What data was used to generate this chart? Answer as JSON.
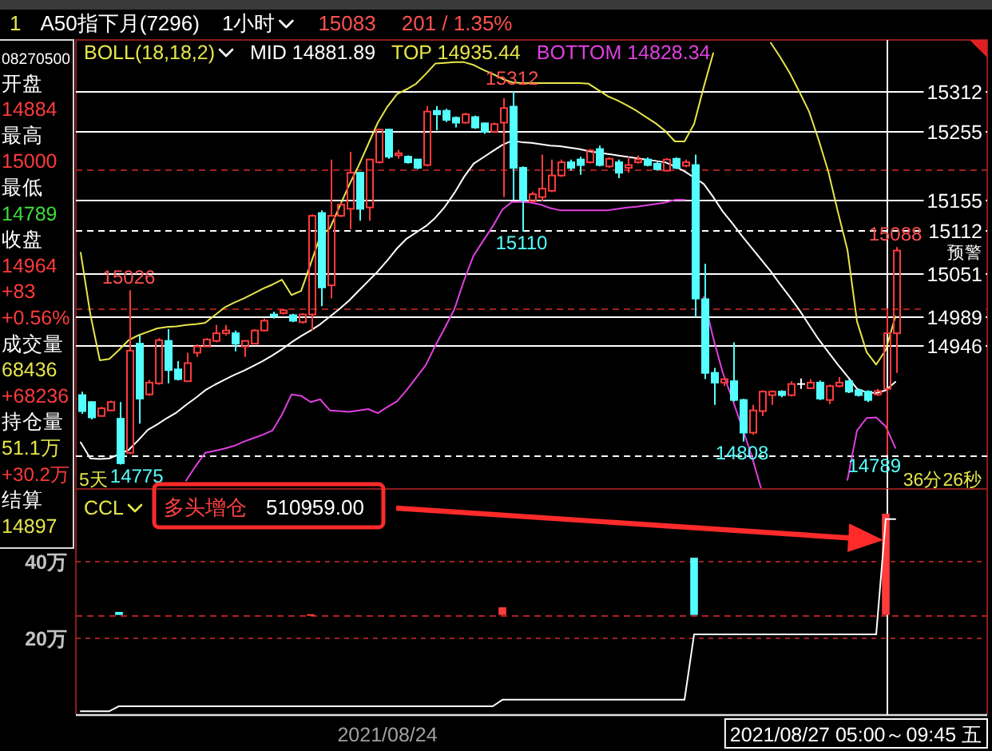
{
  "chart_data": [
    {
      "type": "candlestick",
      "title": "A50指下月(7296)",
      "legend_title": "BOLL(18,18,2)",
      "legend": "top left",
      "tick_labels": "y",
      "categories": [
        null,
        null,
        null,
        null,
        null,
        null,
        null,
        null,
        null,
        null,
        null,
        null,
        null,
        null,
        null,
        null,
        null,
        null,
        null,
        null,
        null,
        null,
        null,
        null,
        null,
        null,
        null,
        null,
        null,
        null,
        null,
        null,
        null,
        null,
        null,
        null,
        null,
        null,
        null,
        null,
        null,
        null,
        null,
        null,
        null,
        null,
        null,
        null,
        null,
        null,
        null,
        null,
        null,
        null,
        null,
        null,
        null,
        null,
        null,
        null,
        null,
        null,
        null,
        null,
        null,
        null,
        null,
        null,
        null,
        null,
        null,
        null,
        null,
        null,
        null,
        null,
        null,
        null,
        null,
        null,
        null,
        null,
        null,
        null,
        null,
        null
      ],
      "ylim": [
        14740,
        15386
      ],
      "yticks": [
        15312,
        15255,
        15155,
        15112,
        15051,
        14989,
        14946
      ],
      "ohlc": [
        [
          14875,
          14880,
          14848,
          14852
        ],
        [
          14865,
          14866,
          14840,
          14843
        ],
        [
          14845,
          14858,
          14844,
          14856
        ],
        [
          14853,
          14867,
          14852,
          14865
        ],
        [
          14841,
          14865,
          14775,
          14777
        ],
        [
          14792,
          15026,
          14790,
          14939
        ],
        [
          14949,
          14961,
          14834,
          14870
        ],
        [
          14876,
          14897,
          14874,
          14893
        ],
        [
          14892,
          14957,
          14890,
          14954
        ],
        [
          14953,
          14970,
          14892,
          14911
        ],
        [
          14912,
          14924,
          14896,
          14898
        ],
        [
          14895,
          14936,
          14894,
          14921
        ],
        [
          14936,
          14948,
          14930,
          14945
        ],
        [
          14945,
          14957,
          14945,
          14955
        ],
        [
          14953,
          14976,
          14951,
          14964
        ],
        [
          14964,
          14976,
          14961,
          14968
        ],
        [
          14964,
          14968,
          14938,
          14949
        ],
        [
          14945,
          14954,
          14930,
          14953
        ],
        [
          14949,
          14970,
          14948,
          14968
        ],
        [
          14968,
          14985,
          14967,
          14982
        ],
        [
          14991,
          14995,
          14985,
          14989
        ],
        [
          14993,
          14999,
          14991,
          14997
        ],
        [
          14990,
          14992,
          14980,
          14982
        ],
        [
          14980,
          14993,
          14978,
          14991
        ],
        [
          14991,
          15135,
          14968,
          15133
        ],
        [
          15137,
          15141,
          15003,
          15030
        ],
        [
          15033,
          15214,
          15014,
          15133
        ],
        [
          15133,
          15152,
          15131,
          15149
        ],
        [
          15143,
          15225,
          15114,
          15195
        ],
        [
          15195,
          15196,
          15126,
          15143
        ],
        [
          15145,
          15214,
          15126,
          15214
        ],
        [
          15210,
          15258,
          15208,
          15257
        ],
        [
          15257,
          15258,
          15215,
          15218
        ],
        [
          15220,
          15228,
          15215,
          15223
        ],
        [
          15218,
          15220,
          15208,
          15210
        ],
        [
          15214,
          15214,
          15200,
          15202
        ],
        [
          15206,
          15291,
          15204,
          15283
        ],
        [
          15284,
          15291,
          15256,
          15279
        ],
        [
          15284,
          15287,
          15268,
          15271
        ],
        [
          15274,
          15276,
          15260,
          15267
        ],
        [
          15267,
          15281,
          15266,
          15279
        ],
        [
          15275,
          15277,
          15258,
          15260
        ],
        [
          15266,
          15267,
          15251,
          15254
        ],
        [
          15254,
          15267,
          15252,
          15265
        ],
        [
          15267,
          15302,
          15160,
          15288
        ],
        [
          15290,
          15312,
          15156,
          15202
        ],
        [
          15202,
          15204,
          15110,
          15156
        ],
        [
          15154,
          15168,
          15152,
          15164
        ],
        [
          15160,
          15221,
          15154,
          15172
        ],
        [
          15169,
          15214,
          15167,
          15191
        ],
        [
          15191,
          15214,
          15189,
          15210
        ],
        [
          15210,
          15214,
          15198,
          15202
        ],
        [
          15214,
          15218,
          15192,
          15206
        ],
        [
          15210,
          15229,
          15208,
          15227
        ],
        [
          15229,
          15234,
          15204,
          15206
        ],
        [
          15204,
          15217,
          15202,
          15215
        ],
        [
          15210,
          15214,
          15187,
          15195
        ],
        [
          15202,
          15218,
          15195,
          15206
        ],
        [
          15210,
          15220,
          15208,
          15214
        ],
        [
          15214,
          15217,
          15204,
          15206
        ],
        [
          15208,
          15210,
          15198,
          15200
        ],
        [
          15198,
          15216,
          15197,
          15214
        ],
        [
          15215,
          15217,
          15200,
          15202
        ],
        [
          15205,
          15214,
          15203,
          15210
        ],
        [
          15206,
          15221,
          14987,
          15014
        ],
        [
          15013,
          15064,
          14898,
          14907
        ],
        [
          14907,
          14914,
          14861,
          14893
        ],
        [
          14893,
          14900,
          14888,
          14898
        ],
        [
          14895,
          14951,
          14866,
          14868
        ],
        [
          14868,
          14870,
          14808,
          14821
        ],
        [
          14821,
          14861,
          14818,
          14853
        ],
        [
          14852,
          14882,
          14845,
          14880
        ],
        [
          14875,
          14882,
          14861,
          14880
        ],
        [
          14880,
          14882,
          14872,
          14875
        ],
        [
          14875,
          14895,
          14873,
          14891
        ],
        [
          14891,
          14899,
          14884,
          14891
        ],
        [
          14885,
          14898,
          14884,
          14893
        ],
        [
          14893,
          14896,
          14868,
          14870
        ],
        [
          14868,
          14890,
          14862,
          14888
        ],
        [
          14888,
          14901,
          14886,
          14893
        ],
        [
          14895,
          14897,
          14878,
          14880
        ],
        [
          14882,
          14884,
          14873,
          14875
        ],
        [
          14880,
          14882,
          14865,
          14868
        ],
        [
          14876,
          14884,
          14874,
          14881
        ],
        [
          14884,
          15000,
          14789,
          14964
        ],
        [
          14964,
          15088,
          14907,
          15083
        ]
      ],
      "colors": [
        "#54ffff",
        "#54ffff",
        "#ff3b3b",
        "#ff3b3b",
        "#54ffff",
        "#ff3b3b",
        "#54ffff",
        "#ff3b3b",
        "#ff3b3b",
        "#54ffff",
        "#54ffff",
        "#ff3b3b",
        "#ff3b3b",
        "#ff3b3b",
        "#ff3b3b",
        "#ff3b3b",
        "#54ffff",
        "#ff3b3b",
        "#ff3b3b",
        "#ff3b3b",
        "#54ffff",
        "#ff3b3b",
        "#54ffff",
        "#ff3b3b",
        "#ff3b3b",
        "#54ffff",
        "#ff3b3b",
        "#ff3b3b",
        "#ff3b3b",
        "#54ffff",
        "#ff3b3b",
        "#ff3b3b",
        "#54ffff",
        "#ff3b3b",
        "#54ffff",
        "#54ffff",
        "#ff3b3b",
        "#54ffff",
        "#54ffff",
        "#54ffff",
        "#ff3b3b",
        "#54ffff",
        "#54ffff",
        "#ff3b3b",
        "#ff3b3b",
        "#54ffff",
        "#54ffff",
        "#ff3b3b",
        "#ff3b3b",
        "#ff3b3b",
        "#ff3b3b",
        "#54ffff",
        "#54ffff",
        "#ff3b3b",
        "#54ffff",
        "#ff3b3b",
        "#54ffff",
        "#ff3b3b",
        "#ff3b3b",
        "#54ffff",
        "#54ffff",
        "#ff3b3b",
        "#54ffff",
        "#ff3b3b",
        "#54ffff",
        "#54ffff",
        "#54ffff",
        "#ff3b3b",
        "#54ffff",
        "#54ffff",
        "#ff3b3b",
        "#ff3b3b",
        "#ff3b3b",
        "#54ffff",
        "#ff3b3b",
        "#ffffff",
        "#ff3b3b",
        "#54ffff",
        "#ff3b3b",
        "#ff3b3b",
        "#54ffff",
        "#54ffff",
        "#54ffff",
        "#ff3b3b",
        "#ff3b3b",
        "#ff3b3b"
      ],
      "value_labels": [
        null,
        null,
        null,
        null,
        "14775",
        "15026",
        null,
        null,
        null,
        null,
        null,
        null,
        null,
        null,
        null,
        null,
        null,
        null,
        null,
        null,
        null,
        null,
        null,
        null,
        null,
        null,
        null,
        null,
        null,
        null,
        null,
        null,
        null,
        null,
        null,
        null,
        null,
        null,
        null,
        null,
        null,
        null,
        null,
        null,
        null,
        "15312",
        "15110",
        null,
        null,
        null,
        null,
        null,
        null,
        null,
        null,
        null,
        null,
        null,
        null,
        null,
        null,
        null,
        null,
        null,
        null,
        null,
        null,
        null,
        null,
        "14808",
        null,
        null,
        null,
        null,
        null,
        null,
        null,
        null,
        null,
        null,
        null,
        null,
        null,
        null,
        "14789",
        "15088"
      ],
      "series": [
        {
          "name": "MID 14881.89",
          "type": "line",
          "color": "#ffffff",
          "values": [
            14807,
            14784,
            14783,
            14784,
            14790,
            14796,
            14810,
            14825,
            14833,
            14842,
            14850,
            14861,
            14871,
            14882,
            14890,
            14897,
            14904,
            14910,
            14917,
            14924,
            14932,
            14941,
            14951,
            14960,
            14968,
            14977,
            14988,
            14999,
            15011,
            15025,
            15039,
            15053,
            15069,
            15086,
            15100,
            15109,
            15118,
            15130,
            15146,
            15166,
            15189,
            15208,
            15217,
            15226,
            15235,
            15241,
            15239,
            15238,
            15236,
            15234,
            15233,
            15231,
            15229,
            15226,
            15224,
            15222,
            15220,
            15218,
            15216,
            15214,
            15212,
            15210,
            15204,
            15197,
            15188,
            15179,
            15160,
            15139,
            15122,
            15104,
            15087,
            15070,
            15053,
            15034,
            15016,
            14997,
            14976,
            14955,
            14937,
            14919,
            14902,
            14884,
            14879,
            14878,
            14882,
            14894
          ]
        },
        {
          "name": "TOP 14935.44",
          "type": "line",
          "color": "#e6e64a",
          "values": [
            15080,
            14992,
            14925,
            14927,
            14940,
            14954,
            14961,
            14966,
            14971,
            14973,
            14974,
            14976,
            14977,
            14979,
            14990,
            15001,
            15008,
            15014,
            15021,
            15028,
            15034,
            15041,
            15019,
            15025,
            15064,
            15104,
            15115,
            15146,
            15177,
            15205,
            15236,
            15267,
            15290,
            15308,
            15315,
            15323,
            15337,
            15352,
            15353,
            15354,
            15354,
            15350,
            15343,
            15337,
            15330,
            15325,
            15324,
            15324,
            15324,
            15324,
            15324,
            15324,
            15324,
            15323,
            15314,
            15305,
            15299,
            15292,
            15284,
            15275,
            15266,
            15255,
            15240,
            15240,
            15265,
            15318,
            15367,
            null,
            null,
            null,
            null,
            null,
            15382,
            15361,
            15338,
            15311,
            15283,
            15242,
            15197,
            15139,
            15084,
            14981,
            14937,
            14919,
            14940,
            14988
          ]
        },
        {
          "name": "BOTTOM 14828.34",
          "type": "line",
          "color": "#e040e0",
          "values": [
            null,
            null,
            null,
            null,
            null,
            null,
            null,
            null,
            null,
            null,
            null,
            14752,
            14773,
            14792,
            14795,
            14798,
            14802,
            14808,
            14813,
            14818,
            14824,
            14847,
            14876,
            14874,
            14865,
            14869,
            14853,
            14852,
            14851,
            14853,
            14855,
            14849,
            14858,
            14866,
            14882,
            14900,
            14918,
            14946,
            14972,
            14999,
            15040,
            15076,
            15097,
            15118,
            15142,
            15153,
            15153,
            15152,
            15149,
            15144,
            15141,
            15141,
            15141,
            15141,
            15141,
            15141,
            15143,
            15145,
            15146,
            15148,
            15150,
            15152,
            15156,
            15156,
            null,
            15016,
            14957,
            14907,
            14869,
            14829,
            14788,
            14740,
            null,
            null,
            null,
            null,
            null,
            null,
            null,
            null,
            14753,
            14824,
            14842,
            14843,
            14830,
            14799
          ]
        }
      ],
      "ref_lines": [
        {
          "axis": "y",
          "value": 15312,
          "color": "#ffffff"
        },
        {
          "axis": "y",
          "value": 15255,
          "color": "#ffffff"
        },
        {
          "axis": "y",
          "value": 15200,
          "color": "#a02020",
          "line_style": "dashed"
        },
        {
          "axis": "y",
          "value": 15155,
          "color": "#ffffff"
        },
        {
          "axis": "y",
          "value": 15112,
          "color": "#ffffff",
          "line_style": "dashed"
        },
        {
          "axis": "y",
          "value": 15051,
          "color": "#ffffff"
        },
        {
          "axis": "y",
          "value": 15000,
          "color": "#a02020",
          "line_style": "dashed"
        },
        {
          "axis": "y",
          "value": 14989,
          "color": "#ffffff"
        },
        {
          "axis": "y",
          "value": 14946,
          "color": "#ffffff"
        },
        {
          "axis": "y",
          "value": 14789,
          "color": "#ffffff",
          "line_style": "dashed"
        }
      ],
      "annotations": [
        "1",
        "1小时",
        "15083",
        "201 / 1.35%",
        "5天",
        "36分26秒",
        "预警"
      ]
    },
    {
      "type": "line",
      "title": "CCL",
      "categories": [
        null,
        null,
        null,
        null,
        null,
        null,
        null,
        null,
        null,
        null,
        null,
        null,
        null,
        null,
        null,
        null,
        null,
        null,
        null,
        null,
        null,
        null,
        null,
        null,
        null,
        null,
        null,
        null,
        null,
        null,
        null,
        null,
        "2021/08/24",
        null,
        null,
        null,
        null,
        null,
        null,
        null,
        null,
        null,
        null,
        null,
        null,
        null,
        null,
        null,
        null,
        null,
        null,
        null,
        null,
        null,
        null,
        null,
        null,
        null,
        null,
        null,
        null,
        null,
        null,
        null,
        null,
        null,
        null,
        null,
        null,
        null,
        null,
        null,
        null,
        null,
        null,
        null,
        null,
        null,
        null,
        null,
        null,
        null,
        null,
        null,
        null,
        null
      ],
      "ylim": [
        0,
        59
      ],
      "yticks": [
        {
          "value": 20,
          "label": "20万"
        },
        {
          "value": 40,
          "label": "40万"
        }
      ],
      "grid": "y",
      "series": [
        {
          "type": "bar",
          "values": [
            null,
            null,
            null,
            null,
            0.8,
            null,
            null,
            null,
            null,
            null,
            null,
            null,
            null,
            null,
            null,
            null,
            null,
            null,
            null,
            null,
            null,
            null,
            null,
            null,
            0.2,
            null,
            null,
            null,
            null,
            null,
            null,
            null,
            null,
            null,
            null,
            null,
            null,
            null,
            null,
            null,
            null,
            null,
            null,
            null,
            2,
            null,
            null,
            null,
            null,
            null,
            null,
            null,
            null,
            null,
            null,
            null,
            null,
            null,
            null,
            null,
            null,
            null,
            null,
            null,
            15,
            null,
            null,
            null,
            null,
            null,
            null,
            null,
            null,
            null,
            null,
            null,
            null,
            null,
            null,
            null,
            null,
            null,
            null,
            null,
            26.5,
            null
          ],
          "base": [
            null,
            null,
            null,
            null,
            26,
            null,
            null,
            null,
            null,
            null,
            null,
            null,
            null,
            null,
            null,
            null,
            null,
            null,
            null,
            null,
            null,
            null,
            null,
            null,
            26,
            null,
            null,
            null,
            null,
            null,
            null,
            null,
            null,
            null,
            null,
            null,
            null,
            null,
            null,
            null,
            null,
            null,
            null,
            null,
            26,
            null,
            null,
            null,
            null,
            null,
            null,
            null,
            null,
            null,
            null,
            null,
            null,
            null,
            null,
            null,
            null,
            null,
            null,
            null,
            26,
            null,
            null,
            null,
            null,
            null,
            null,
            null,
            null,
            null,
            null,
            null,
            null,
            null,
            null,
            null,
            null,
            null,
            null,
            null,
            26,
            null
          ],
          "colors": [
            null,
            null,
            null,
            null,
            "#54ffff",
            null,
            null,
            null,
            null,
            null,
            null,
            null,
            null,
            null,
            null,
            null,
            null,
            null,
            null,
            null,
            null,
            null,
            null,
            null,
            "#ff3b3b",
            null,
            null,
            null,
            null,
            null,
            null,
            null,
            null,
            null,
            null,
            null,
            null,
            null,
            null,
            null,
            null,
            null,
            null,
            null,
            "#ff3b3b",
            null,
            null,
            null,
            null,
            null,
            null,
            null,
            null,
            null,
            null,
            null,
            null,
            null,
            null,
            null,
            null,
            null,
            null,
            null,
            "#54ffff",
            null,
            null,
            null,
            null,
            null,
            null,
            null,
            null,
            null,
            null,
            null,
            null,
            null,
            null,
            null,
            null,
            null,
            null,
            null,
            "#ff3b3b",
            null
          ]
        },
        {
          "type": "line",
          "color": "#ffffff",
          "values": [
            0.8,
            0.8,
            0.8,
            0.8,
            2.1,
            2.1,
            2.1,
            2.1,
            2.1,
            2.1,
            2.1,
            2.1,
            2.1,
            2.1,
            2.1,
            2.1,
            2.1,
            2.1,
            2.1,
            2.1,
            2.1,
            2.1,
            2.1,
            2.1,
            2.1,
            2.1,
            2.1,
            2.1,
            2.1,
            2.1,
            2.1,
            2.1,
            2.1,
            2.1,
            2.1,
            2.1,
            2.1,
            2.1,
            2.1,
            2.1,
            2.1,
            2.1,
            2.1,
            2.1,
            3.8,
            3.8,
            3.8,
            3.8,
            3.8,
            3.8,
            3.8,
            3.8,
            3.8,
            3.8,
            3.8,
            3.8,
            3.8,
            3.8,
            3.8,
            3.8,
            3.8,
            3.8,
            3.8,
            3.8,
            20.9,
            20.9,
            20.9,
            20.9,
            20.9,
            20.9,
            20.9,
            20.9,
            20.9,
            20.9,
            20.9,
            20.9,
            20.9,
            20.9,
            20.9,
            20.9,
            20.9,
            20.9,
            20.9,
            20.9,
            51.1,
            51.1
          ]
        }
      ],
      "ref_lines": [
        {
          "axis": "y",
          "value": 26,
          "color": "#b02020",
          "line_style": "dashed"
        }
      ],
      "annotations": [
        "多头增仓",
        "510959.00",
        "2021/08/27 05:00～09:45 五"
      ]
    },
    {
      "type": "other",
      "annotations": [
        "08270500",
        "开盘",
        "14884",
        "最高",
        "15000",
        "最低",
        "14789",
        "收盘",
        "14964",
        "+83",
        "+0.56%",
        "成交量",
        "68436",
        "+68236",
        "持仓量",
        "51.1万",
        "+30.2万",
        "结算",
        "14897"
      ],
      "colors": [
        "#ffffff",
        "#ffffff",
        "#ff3b3b",
        "#ffffff",
        "#ff3b3b",
        "#ffffff",
        "#3cdc3c",
        "#ffffff",
        "#ff3b3b",
        "#ff3b3b",
        "#ff3b3b",
        "#ffffff",
        "#e6e64a",
        "#ff3b3b",
        "#ffffff",
        "#e6e64a",
        "#ff3b3b",
        "#ffffff",
        "#e6e64a"
      ]
    }
  ]
}
